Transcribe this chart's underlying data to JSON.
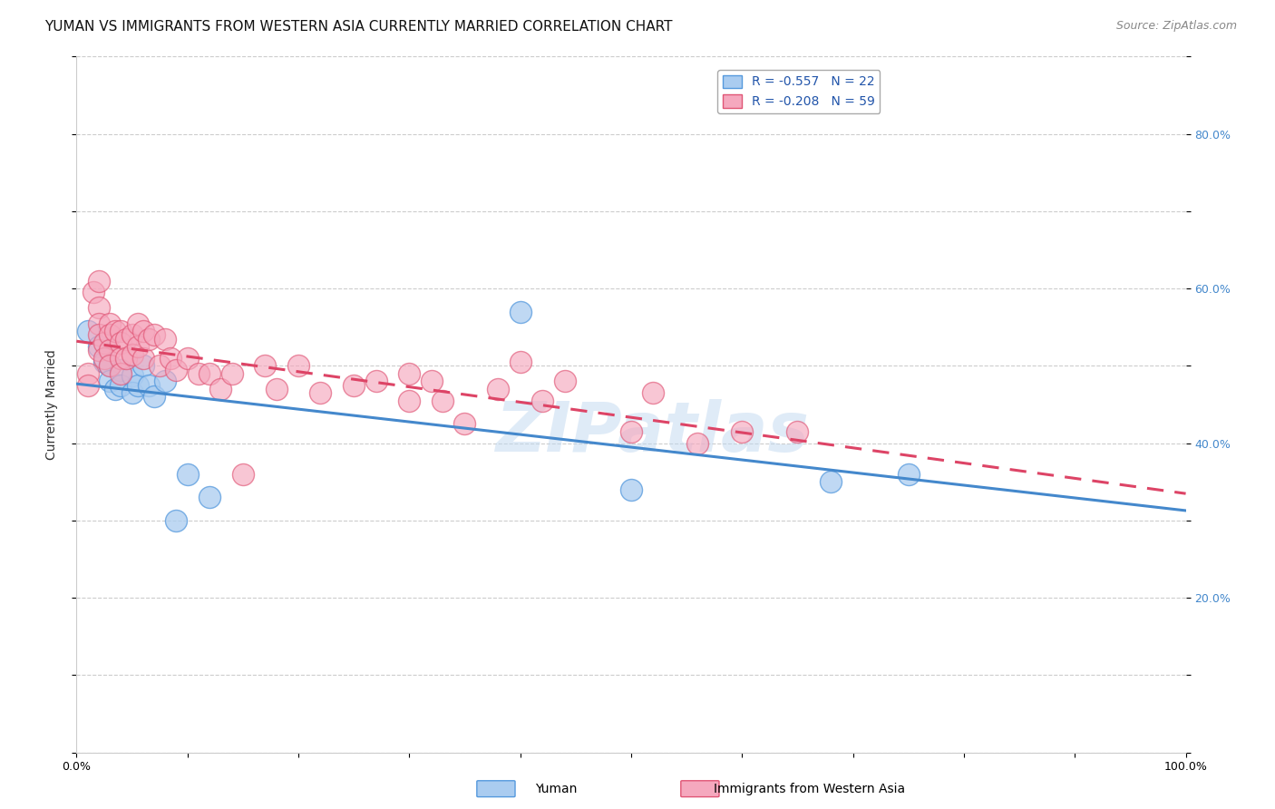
{
  "title": "YUMAN VS IMMIGRANTS FROM WESTERN ASIA CURRENTLY MARRIED CORRELATION CHART",
  "source": "Source: ZipAtlas.com",
  "ylabel": "Currently Married",
  "xlim": [
    0.0,
    1.0
  ],
  "ylim": [
    0.0,
    0.9
  ],
  "ytick_positions": [
    0.0,
    0.1,
    0.2,
    0.3,
    0.4,
    0.5,
    0.6,
    0.7,
    0.8,
    0.9
  ],
  "xtick_positions": [
    0.0,
    0.1,
    0.2,
    0.3,
    0.4,
    0.5,
    0.6,
    0.7,
    0.8,
    0.9,
    1.0
  ],
  "legend_label1": "R = -0.557   N = 22",
  "legend_label2": "R = -0.208   N = 59",
  "series1_name": "Yuman",
  "series2_name": "Immigrants from Western Asia",
  "series1_color": "#aaccf0",
  "series2_color": "#f5a8be",
  "series1_edge_color": "#5599dd",
  "series2_edge_color": "#e05575",
  "series1_line_color": "#4488cc",
  "series2_line_color": "#dd4466",
  "series1_x": [
    0.01,
    0.02,
    0.025,
    0.03,
    0.03,
    0.035,
    0.04,
    0.04,
    0.05,
    0.05,
    0.055,
    0.06,
    0.065,
    0.07,
    0.08,
    0.09,
    0.1,
    0.12,
    0.4,
    0.5,
    0.68,
    0.75
  ],
  "series1_y": [
    0.545,
    0.525,
    0.505,
    0.5,
    0.48,
    0.47,
    0.495,
    0.475,
    0.488,
    0.465,
    0.475,
    0.5,
    0.475,
    0.46,
    0.48,
    0.3,
    0.36,
    0.33,
    0.57,
    0.34,
    0.35,
    0.36
  ],
  "series2_x": [
    0.01,
    0.01,
    0.015,
    0.02,
    0.02,
    0.02,
    0.02,
    0.02,
    0.025,
    0.025,
    0.03,
    0.03,
    0.03,
    0.03,
    0.035,
    0.04,
    0.04,
    0.04,
    0.04,
    0.045,
    0.045,
    0.05,
    0.05,
    0.055,
    0.055,
    0.06,
    0.06,
    0.065,
    0.07,
    0.075,
    0.08,
    0.085,
    0.09,
    0.1,
    0.11,
    0.12,
    0.13,
    0.14,
    0.15,
    0.17,
    0.18,
    0.2,
    0.22,
    0.25,
    0.27,
    0.3,
    0.3,
    0.32,
    0.33,
    0.35,
    0.38,
    0.4,
    0.42,
    0.44,
    0.5,
    0.52,
    0.56,
    0.6,
    0.65
  ],
  "series2_y": [
    0.49,
    0.475,
    0.595,
    0.61,
    0.575,
    0.555,
    0.54,
    0.52,
    0.53,
    0.51,
    0.555,
    0.54,
    0.52,
    0.5,
    0.545,
    0.545,
    0.53,
    0.51,
    0.49,
    0.535,
    0.51,
    0.54,
    0.515,
    0.555,
    0.525,
    0.545,
    0.51,
    0.535,
    0.54,
    0.5,
    0.535,
    0.51,
    0.495,
    0.51,
    0.49,
    0.49,
    0.47,
    0.49,
    0.36,
    0.5,
    0.47,
    0.5,
    0.465,
    0.475,
    0.48,
    0.49,
    0.455,
    0.48,
    0.455,
    0.425,
    0.47,
    0.505,
    0.455,
    0.48,
    0.415,
    0.465,
    0.4,
    0.415,
    0.415
  ],
  "watermark": "ZIPatlas",
  "background_color": "#ffffff",
  "grid_color": "#cccccc",
  "title_fontsize": 11,
  "source_fontsize": 9,
  "axis_label_fontsize": 10,
  "tick_fontsize": 9
}
